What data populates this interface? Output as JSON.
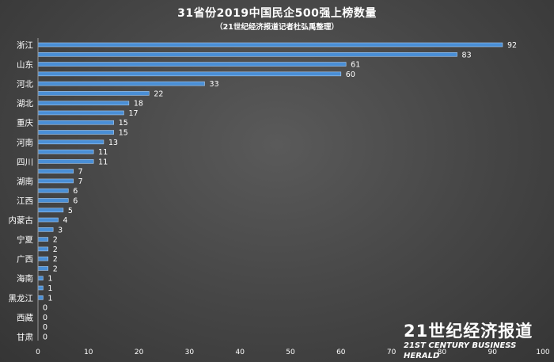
{
  "chart_data": {
    "type": "bar",
    "orientation": "horizontal",
    "title": "31省份2019中国民企500强上榜数量",
    "subtitle": "（21世纪经济报道记者杜弘禹整理）",
    "categories": [
      "浙江",
      "",
      "山东",
      "",
      "河北",
      "",
      "湖北",
      "",
      "重庆",
      "",
      "河南",
      "",
      "四川",
      "",
      "湖南",
      "",
      "江西",
      "",
      "内蒙古",
      "",
      "宁夏",
      "",
      "广西",
      "",
      "海南",
      "",
      "黑龙江",
      "",
      "西藏",
      "",
      "甘肃"
    ],
    "values": [
      92,
      83,
      61,
      60,
      33,
      22,
      18,
      17,
      15,
      15,
      13,
      11,
      11,
      7,
      7,
      6,
      6,
      5,
      4,
      3,
      2,
      2,
      2,
      2,
      1,
      1,
      1,
      0,
      0,
      0,
      0
    ],
    "xlim": [
      0,
      100
    ],
    "xticks": [
      0,
      10,
      20,
      30,
      40,
      50,
      60,
      70,
      80,
      90,
      100
    ],
    "bar_color": "#4a8fd6",
    "grid": false,
    "legend": "none"
  },
  "watermark": {
    "cn": "21世纪经济报道",
    "en": "21ST CENTURY BUSINESS HERALD"
  }
}
